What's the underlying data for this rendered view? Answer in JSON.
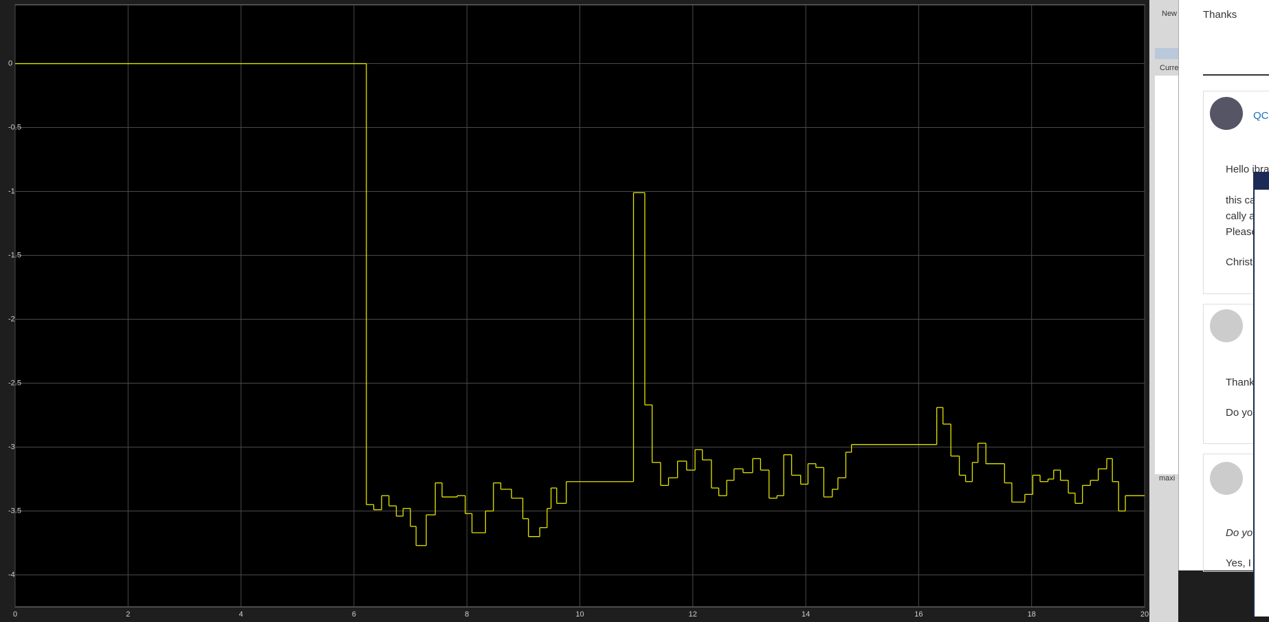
{
  "chart_data": {
    "type": "line",
    "step": "post",
    "x": [
      0,
      6.22,
      6.35,
      6.49,
      6.62,
      6.75,
      6.87,
      7.0,
      7.1,
      7.28,
      7.44,
      7.56,
      7.83,
      7.97,
      8.09,
      8.33,
      8.47,
      8.6,
      8.79,
      8.99,
      9.09,
      9.29,
      9.42,
      9.49,
      9.59,
      9.76,
      10.95,
      11.15,
      11.28,
      11.43,
      11.57,
      11.73,
      11.89,
      12.04,
      12.17,
      12.33,
      12.46,
      12.6,
      12.73,
      12.89,
      13.06,
      13.2,
      13.35,
      13.49,
      13.61,
      13.75,
      13.91,
      14.04,
      14.18,
      14.32,
      14.47,
      14.57,
      14.71,
      14.81,
      16.32,
      16.43,
      16.57,
      16.72,
      16.83,
      16.95,
      17.05,
      17.19,
      17.52,
      17.65,
      17.88,
      18.02,
      18.15,
      18.29,
      18.39,
      18.51,
      18.65,
      18.77,
      18.9,
      19.04,
      19.18,
      19.33,
      19.43,
      19.54,
      19.66,
      20
    ],
    "series": [
      {
        "color": "#e6e600",
        "values": [
          0,
          -3.45,
          -3.49,
          -3.38,
          -3.46,
          -3.54,
          -3.48,
          -3.62,
          -3.77,
          -3.53,
          -3.28,
          -3.39,
          -3.38,
          -3.52,
          -3.67,
          -3.5,
          -3.28,
          -3.33,
          -3.4,
          -3.56,
          -3.7,
          -3.63,
          -3.48,
          -3.32,
          -3.44,
          -3.27,
          -1.01,
          -2.67,
          -3.12,
          -3.3,
          -3.24,
          -3.11,
          -3.18,
          -3.02,
          -3.1,
          -3.32,
          -3.38,
          -3.26,
          -3.17,
          -3.2,
          -3.09,
          -3.18,
          -3.4,
          -3.38,
          -3.06,
          -3.22,
          -3.29,
          -3.13,
          -3.16,
          -3.39,
          -3.33,
          -3.24,
          -3.04,
          -2.98,
          -2.69,
          -2.82,
          -3.07,
          -3.22,
          -3.27,
          -3.12,
          -2.97,
          -3.13,
          -3.28,
          -3.43,
          -3.37,
          -3.22,
          -3.27,
          -3.25,
          -3.18,
          -3.26,
          -3.36,
          -3.44,
          -3.3,
          -3.26,
          -3.17,
          -3.09,
          -3.27,
          -3.5,
          -3.38,
          -3.38
        ]
      }
    ],
    "xlim": [
      0,
      20
    ],
    "xticks": [
      0,
      2,
      4,
      6,
      8,
      10,
      12,
      14,
      16,
      18,
      20
    ],
    "ylim": [
      -4.25,
      0.46
    ],
    "yticks": [
      0,
      -0.5,
      -1,
      -1.5,
      -2,
      -2.5,
      -3,
      -3.5,
      -4
    ],
    "grid": true
  },
  "ui": {
    "matlab": {
      "new": "New",
      "current": "Curre",
      "maxi": "maxi"
    },
    "forum": {
      "thanks": "Thanks",
      "user": "QC",
      "post1": [
        "Hello ibra",
        "this ca",
        "cally a",
        "Please",
        "Christ"
      ],
      "post2": [
        "Thank",
        "Do you"
      ],
      "post3": [
        "Do yo",
        "Yes, I t"
      ]
    }
  }
}
